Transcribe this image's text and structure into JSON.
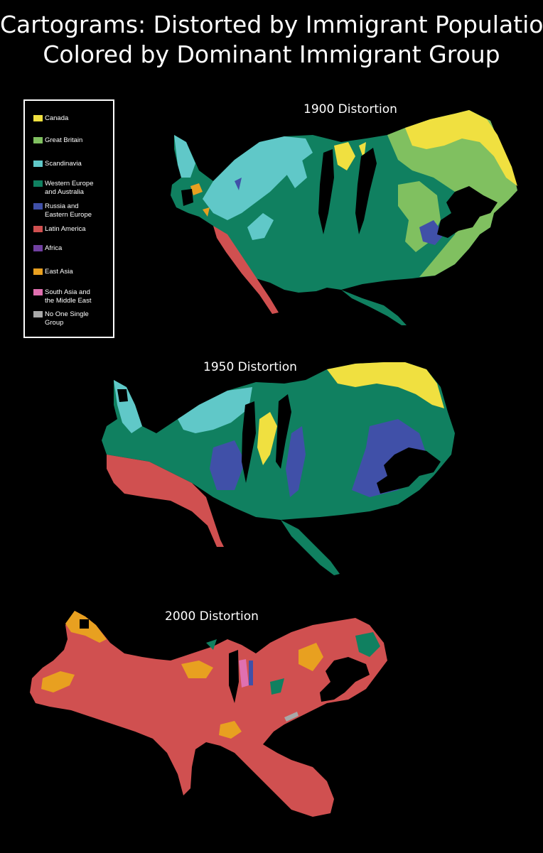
{
  "title": {
    "line1": "Cartograms: Distorted by Immigrant Population,",
    "line2": "Colored by Dominant Immigrant Group"
  },
  "legend": [
    {
      "label": "Canada",
      "color": "#f0e040"
    },
    {
      "label": "Great Britain",
      "color": "#80c060"
    },
    {
      "label": "Scandinavia",
      "color": "#60c8c8"
    },
    {
      "label": "Western Europe\nand Australia",
      "color": "#108060"
    },
    {
      "label": "Russia and\nEastern Europe",
      "color": "#4050a8"
    },
    {
      "label": "Latin America",
      "color": "#d05050"
    },
    {
      "label": "Africa",
      "color": "#7040a0"
    },
    {
      "label": "East Asia",
      "color": "#e8a020"
    },
    {
      "label": "South Asia and\nthe Middle East",
      "color": "#e070b0"
    },
    {
      "label": "No One Single\nGroup",
      "color": "#a8a8a8"
    }
  ],
  "maps": [
    {
      "label": "1900 Distortion"
    },
    {
      "label": "1950 Distortion"
    },
    {
      "label": "2000 Distortion"
    }
  ]
}
